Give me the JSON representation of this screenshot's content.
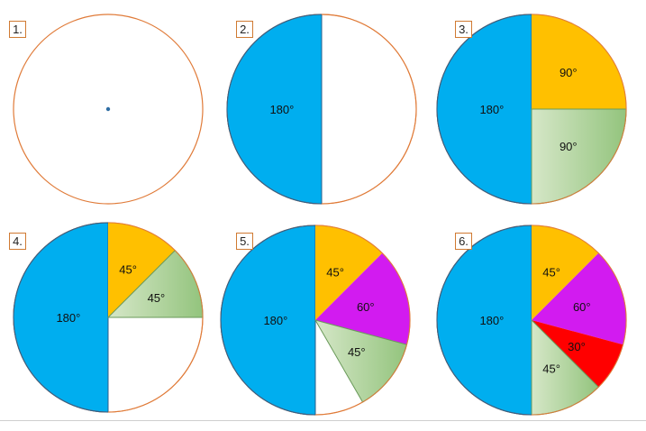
{
  "colors": {
    "outline": "#e07b39",
    "blue": "#00aeef",
    "blue_edge": "#2e5f8a",
    "orange": "#ffc000",
    "green_light": "#d6e7c8",
    "green_dark": "#93c47d",
    "green_edge": "#6a9a5a",
    "magenta": "#d21bf0",
    "red": "#ff0000",
    "center_dot": "#2e6da4"
  },
  "steps": [
    {
      "number": "1.",
      "show_center_dot": true,
      "sectors": []
    },
    {
      "number": "2.",
      "show_center_dot": false,
      "sectors": [
        {
          "angle_deg": 180,
          "color": "blue",
          "label": "180°"
        }
      ]
    },
    {
      "number": "3.",
      "show_center_dot": false,
      "sectors": [
        {
          "angle_deg": 180,
          "color": "blue",
          "label": "180°"
        },
        {
          "angle_deg": 90,
          "color": "orange",
          "label": "90°"
        },
        {
          "angle_deg": 90,
          "color": "green",
          "label": "90°"
        }
      ]
    },
    {
      "number": "4.",
      "show_center_dot": false,
      "sectors": [
        {
          "angle_deg": 180,
          "color": "blue",
          "label": "180°"
        },
        {
          "angle_deg": 45,
          "color": "orange",
          "label": "45°"
        },
        {
          "angle_deg": 45,
          "color": "green",
          "label": "45°"
        }
      ]
    },
    {
      "number": "5.",
      "show_center_dot": false,
      "sectors": [
        {
          "angle_deg": 180,
          "color": "blue",
          "label": "180°"
        },
        {
          "angle_deg": 45,
          "color": "orange",
          "label": "45°"
        },
        {
          "angle_deg": 60,
          "color": "magenta",
          "label": "60°"
        },
        {
          "angle_deg": 45,
          "color": "green",
          "label": "45°"
        }
      ]
    },
    {
      "number": "6.",
      "show_center_dot": false,
      "sectors": [
        {
          "angle_deg": 180,
          "color": "blue",
          "label": "180°"
        },
        {
          "angle_deg": 45,
          "color": "orange",
          "label": "45°"
        },
        {
          "angle_deg": 60,
          "color": "magenta",
          "label": "60°"
        },
        {
          "angle_deg": 30,
          "color": "red",
          "label": "30°"
        },
        {
          "angle_deg": 45,
          "color": "green",
          "label": "45°"
        }
      ]
    }
  ]
}
